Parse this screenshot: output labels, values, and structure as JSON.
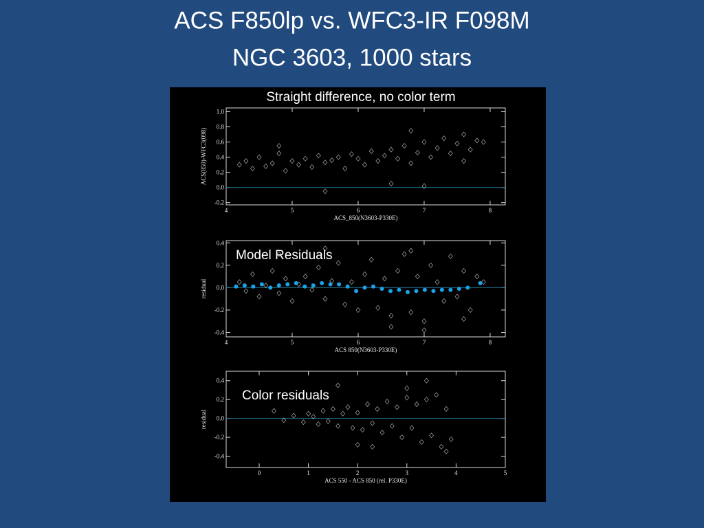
{
  "slide": {
    "title": [
      "ACS F850lp vs. WFC3-IR F098M",
      "NGC 3603, 1000 stars"
    ]
  },
  "chart_data": [
    {
      "type": "scatter",
      "title": "Straight difference, no color term",
      "x_label": "ACS_850(N3603-P330E)",
      "y_label": "ACS(850)-WFC3(098)",
      "xlim": [
        4,
        8.23
      ],
      "ylim": [
        -0.23,
        1.05
      ],
      "xticks": [
        4,
        5,
        6,
        7,
        8
      ],
      "yticks": [
        -0.2,
        {
          "value": 0,
          "label": "0.0"
        },
        0.2,
        0.4,
        0.6,
        0.8,
        {
          "value": 1,
          "label": "1.0"
        }
      ],
      "zero_line": true,
      "zero_line_color": "#1d6e8c",
      "series": [
        {
          "color": "#c8c8c8",
          "x": [
            4.2,
            4.3,
            4.4,
            4.5,
            4.6,
            4.7,
            4.8,
            4.9,
            5.0,
            5.1,
            5.2,
            5.3,
            5.4,
            5.5,
            5.6,
            5.7,
            5.8,
            5.9,
            6.0,
            6.1,
            6.2,
            6.3,
            6.4,
            6.5,
            6.6,
            6.7,
            6.8,
            6.9,
            7.0,
            7.1,
            7.2,
            7.3,
            7.4,
            7.5,
            7.6,
            7.7,
            7.8,
            7.9,
            5.5,
            6.5,
            7.0,
            4.8,
            6.8,
            7.6
          ],
          "values": [
            0.3,
            0.35,
            0.25,
            0.4,
            0.28,
            0.32,
            0.45,
            0.22,
            0.35,
            0.3,
            0.38,
            0.27,
            0.42,
            0.33,
            0.36,
            0.4,
            0.25,
            0.44,
            0.38,
            0.3,
            0.48,
            0.35,
            0.42,
            0.5,
            0.38,
            0.55,
            0.32,
            0.46,
            0.6,
            0.4,
            0.52,
            0.65,
            0.45,
            0.58,
            0.7,
            0.5,
            0.62,
            0.6,
            -0.05,
            0.05,
            0.02,
            0.55,
            0.75,
            0.35
          ]
        }
      ]
    },
    {
      "type": "scatter",
      "annotation": "Model Residuals",
      "x_label": "ACS 850(N3603-P330E)",
      "y_label": "residual",
      "xlim": [
        4,
        8.23
      ],
      "ylim": [
        -0.44,
        0.42
      ],
      "xticks": [
        4,
        5,
        6,
        7,
        8
      ],
      "yticks": [
        -0.4,
        -0.2,
        {
          "value": 0,
          "label": "0.0"
        },
        0.2,
        0.4
      ],
      "zero_line": true,
      "zero_line_color": "#1d6e8c",
      "series": [
        {
          "color": "#c8c8c8",
          "x": [
            4.2,
            4.3,
            4.4,
            4.5,
            4.6,
            4.7,
            4.8,
            4.9,
            5.0,
            5.1,
            5.2,
            5.3,
            5.4,
            5.5,
            5.6,
            5.7,
            5.8,
            5.9,
            6.0,
            6.1,
            6.2,
            6.3,
            6.4,
            6.5,
            6.6,
            6.7,
            6.8,
            6.9,
            7.0,
            7.1,
            7.2,
            7.3,
            7.4,
            7.5,
            7.6,
            7.7,
            7.8,
            7.9,
            5.5,
            6.5,
            7.0,
            4.8,
            6.8,
            7.6
          ],
          "values": [
            0.05,
            -0.03,
            0.12,
            -0.08,
            0.02,
            0.15,
            -0.05,
            0.08,
            -0.12,
            0.03,
            0.1,
            -0.02,
            0.18,
            -0.1,
            0.06,
            0.22,
            -0.15,
            0.05,
            -0.2,
            0.12,
            0.25,
            -0.18,
            0.08,
            -0.25,
            0.15,
            0.3,
            -0.22,
            0.1,
            -0.3,
            0.2,
            0.05,
            -0.12,
            0.28,
            -0.08,
            0.15,
            -0.2,
            0.1,
            0.05,
            0.35,
            -0.35,
            -0.38,
            0.3,
            0.33,
            -0.28
          ]
        },
        {
          "color": "#1aa3e8",
          "marker": "dot",
          "x": [
            4.15,
            4.28,
            4.41,
            4.54,
            4.67,
            4.8,
            4.93,
            5.06,
            5.19,
            5.32,
            5.45,
            5.58,
            5.71,
            5.84,
            5.97,
            6.1,
            6.23,
            6.36,
            6.49,
            6.62,
            6.75,
            6.88,
            7.01,
            7.14,
            7.27,
            7.4,
            7.53,
            7.66,
            7.85
          ],
          "values": [
            0.01,
            0.02,
            0.01,
            0.03,
            0.0,
            0.02,
            0.03,
            0.04,
            0.01,
            0.02,
            0.04,
            0.03,
            0.03,
            0.01,
            -0.03,
            0.0,
            0.01,
            -0.01,
            -0.03,
            -0.02,
            -0.04,
            -0.03,
            -0.02,
            -0.03,
            -0.02,
            -0.02,
            -0.01,
            0.0,
            0.04
          ]
        }
      ]
    },
    {
      "type": "scatter",
      "annotation": "Color residuals",
      "x_label": "ACS 550 - ACS 850 (rel. P330E)",
      "y_label": "residual",
      "xlim": [
        -0.67,
        5
      ],
      "ylim": [
        -0.52,
        0.5
      ],
      "xticks": [
        0,
        1,
        2,
        3,
        4,
        5
      ],
      "yticks": [
        -0.4,
        -0.2,
        {
          "value": 0,
          "label": "0.0"
        },
        0.2,
        0.4
      ],
      "zero_line": true,
      "zero_line_color": "#1d6e8c",
      "series": [
        {
          "color": "#c8c8c8",
          "x": [
            0.3,
            0.5,
            0.7,
            0.9,
            1.0,
            1.1,
            1.2,
            1.3,
            1.4,
            1.5,
            1.6,
            1.7,
            1.8,
            1.9,
            2.0,
            2.1,
            2.2,
            2.3,
            2.4,
            2.5,
            2.6,
            2.7,
            2.8,
            2.9,
            3.0,
            3.1,
            3.2,
            3.3,
            3.4,
            3.5,
            3.6,
            3.7,
            3.8,
            3.9,
            1.6,
            2.3,
            3.0,
            3.8,
            2.0,
            3.4
          ],
          "values": [
            0.08,
            -0.02,
            0.03,
            -0.04,
            0.05,
            0.02,
            -0.06,
            0.08,
            -0.03,
            0.1,
            -0.08,
            0.05,
            0.12,
            -0.1,
            0.06,
            -0.12,
            0.15,
            -0.05,
            0.1,
            -0.15,
            0.18,
            -0.08,
            0.12,
            -0.2,
            0.22,
            -0.1,
            0.15,
            -0.25,
            0.2,
            -0.18,
            0.25,
            -0.3,
            0.1,
            -0.22,
            0.35,
            -0.3,
            0.32,
            -0.35,
            -0.28,
            0.4
          ]
        }
      ]
    }
  ]
}
